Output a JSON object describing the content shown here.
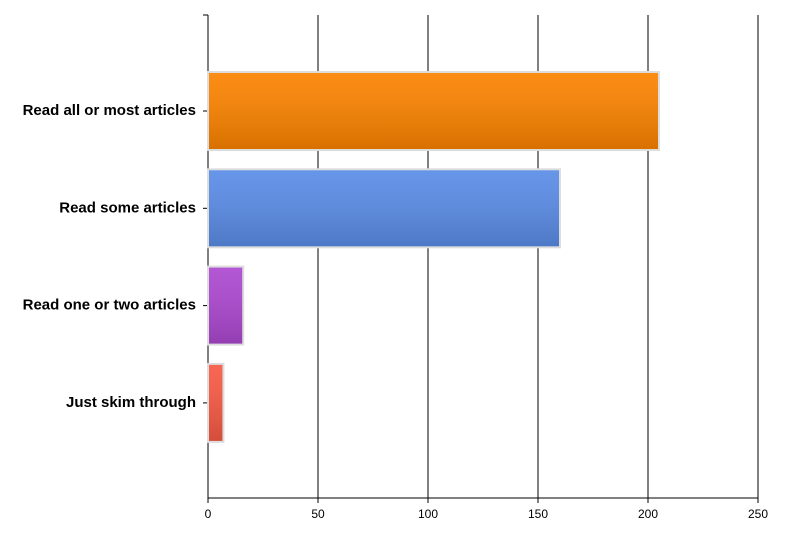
{
  "chart_data": {
    "type": "bar",
    "orientation": "horizontal",
    "categories": [
      "Read all or most articles",
      "Read some articles",
      "Read one or two articles",
      "Just skim through"
    ],
    "values": [
      205,
      160,
      16,
      7
    ],
    "colors": [
      "#fb8300",
      "#5a8ce6",
      "#ac48d0",
      "#f65a44"
    ],
    "xlim": [
      0,
      250
    ],
    "xticks": [
      0,
      50,
      100,
      150,
      200,
      250
    ],
    "grid": true
  }
}
